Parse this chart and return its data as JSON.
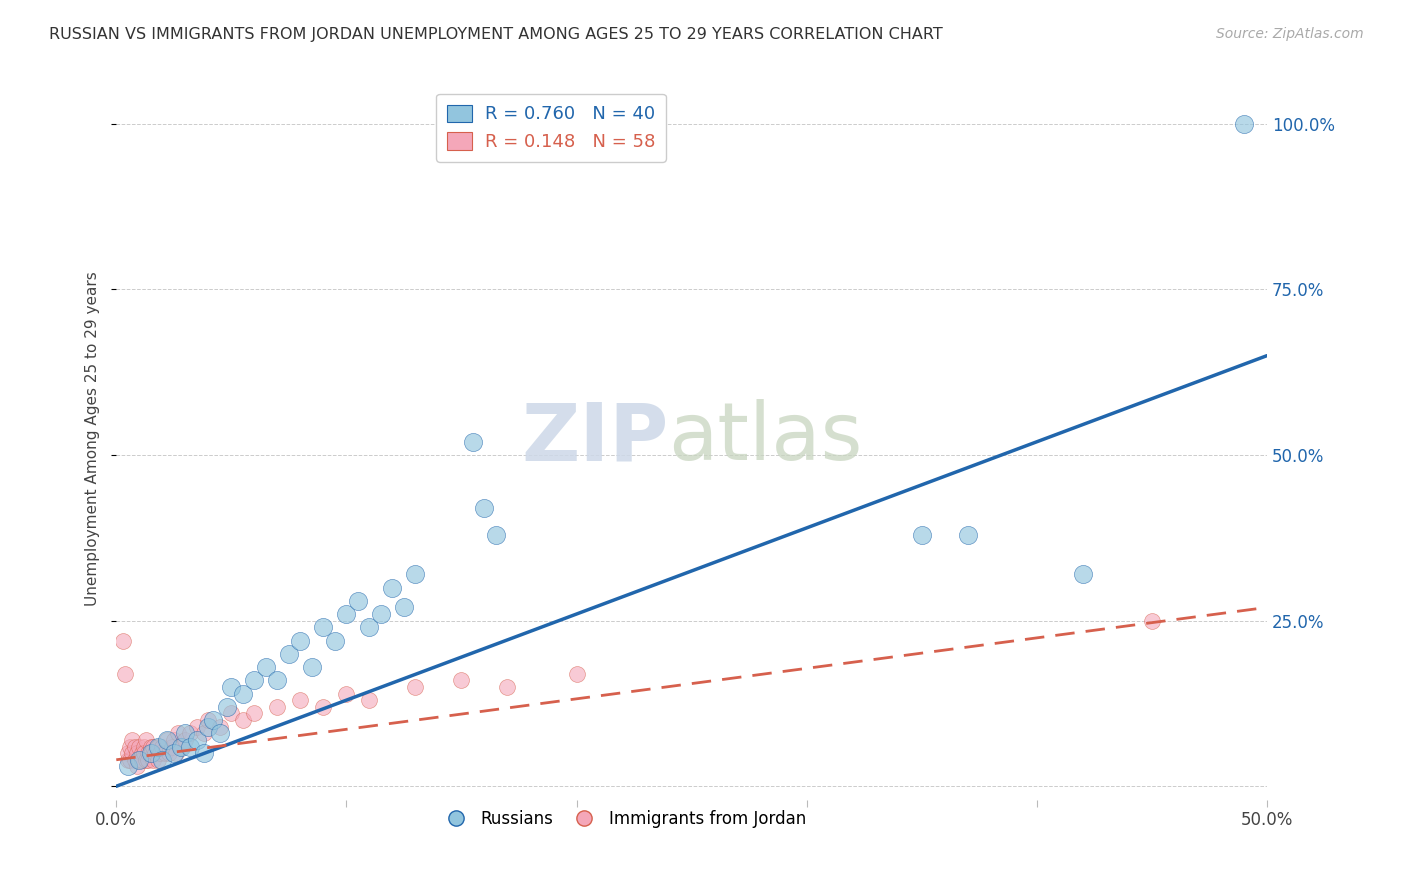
{
  "title": "RUSSIAN VS IMMIGRANTS FROM JORDAN UNEMPLOYMENT AMONG AGES 25 TO 29 YEARS CORRELATION CHART",
  "source": "Source: ZipAtlas.com",
  "ylabel": "Unemployment Among Ages 25 to 29 years",
  "xlim": [
    0.0,
    0.5
  ],
  "ylim": [
    -0.02,
    1.07
  ],
  "xticks": [
    0.0,
    0.1,
    0.2,
    0.3,
    0.4,
    0.5
  ],
  "xticklabels_visible": [
    "0.0%",
    "",
    "",
    "",
    "",
    "50.0%"
  ],
  "yticks": [
    0.0,
    0.25,
    0.5,
    0.75,
    1.0
  ],
  "yticklabels": [
    "",
    "25.0%",
    "50.0%",
    "75.0%",
    "100.0%"
  ],
  "legend_r1": "R = 0.760",
  "legend_n1": "N = 40",
  "legend_r2": "R = 0.148",
  "legend_n2": "N = 58",
  "russians_color": "#92c5de",
  "jordan_color": "#f4a7b9",
  "blue_line_color": "#2166ac",
  "pink_line_color": "#d6604d",
  "watermark_zip_color": "#cdd8e8",
  "watermark_atlas_color": "#c8d5c0",
  "russians_scatter": [
    [
      0.005,
      0.03
    ],
    [
      0.01,
      0.04
    ],
    [
      0.015,
      0.05
    ],
    [
      0.018,
      0.06
    ],
    [
      0.02,
      0.04
    ],
    [
      0.022,
      0.07
    ],
    [
      0.025,
      0.05
    ],
    [
      0.028,
      0.06
    ],
    [
      0.03,
      0.08
    ],
    [
      0.032,
      0.06
    ],
    [
      0.035,
      0.07
    ],
    [
      0.038,
      0.05
    ],
    [
      0.04,
      0.09
    ],
    [
      0.042,
      0.1
    ],
    [
      0.045,
      0.08
    ],
    [
      0.048,
      0.12
    ],
    [
      0.05,
      0.15
    ],
    [
      0.055,
      0.14
    ],
    [
      0.06,
      0.16
    ],
    [
      0.065,
      0.18
    ],
    [
      0.07,
      0.16
    ],
    [
      0.075,
      0.2
    ],
    [
      0.08,
      0.22
    ],
    [
      0.085,
      0.18
    ],
    [
      0.09,
      0.24
    ],
    [
      0.095,
      0.22
    ],
    [
      0.1,
      0.26
    ],
    [
      0.105,
      0.28
    ],
    [
      0.11,
      0.24
    ],
    [
      0.115,
      0.26
    ],
    [
      0.12,
      0.3
    ],
    [
      0.125,
      0.27
    ],
    [
      0.13,
      0.32
    ],
    [
      0.155,
      0.52
    ],
    [
      0.16,
      0.42
    ],
    [
      0.165,
      0.38
    ],
    [
      0.35,
      0.38
    ],
    [
      0.37,
      0.38
    ],
    [
      0.42,
      0.32
    ],
    [
      0.49,
      1.0
    ]
  ],
  "jordan_scatter": [
    [
      0.003,
      0.22
    ],
    [
      0.004,
      0.17
    ],
    [
      0.005,
      0.04
    ],
    [
      0.005,
      0.05
    ],
    [
      0.006,
      0.04
    ],
    [
      0.006,
      0.06
    ],
    [
      0.007,
      0.05
    ],
    [
      0.007,
      0.07
    ],
    [
      0.008,
      0.04
    ],
    [
      0.008,
      0.06
    ],
    [
      0.009,
      0.05
    ],
    [
      0.009,
      0.03
    ],
    [
      0.01,
      0.04
    ],
    [
      0.01,
      0.06
    ],
    [
      0.011,
      0.05
    ],
    [
      0.011,
      0.04
    ],
    [
      0.012,
      0.06
    ],
    [
      0.012,
      0.05
    ],
    [
      0.013,
      0.04
    ],
    [
      0.013,
      0.07
    ],
    [
      0.014,
      0.05
    ],
    [
      0.014,
      0.04
    ],
    [
      0.015,
      0.06
    ],
    [
      0.015,
      0.05
    ],
    [
      0.016,
      0.04
    ],
    [
      0.016,
      0.06
    ],
    [
      0.017,
      0.05
    ],
    [
      0.018,
      0.04
    ],
    [
      0.018,
      0.06
    ],
    [
      0.019,
      0.05
    ],
    [
      0.02,
      0.06
    ],
    [
      0.021,
      0.05
    ],
    [
      0.022,
      0.07
    ],
    [
      0.023,
      0.05
    ],
    [
      0.024,
      0.06
    ],
    [
      0.025,
      0.07
    ],
    [
      0.026,
      0.05
    ],
    [
      0.027,
      0.08
    ],
    [
      0.028,
      0.06
    ],
    [
      0.03,
      0.07
    ],
    [
      0.032,
      0.08
    ],
    [
      0.035,
      0.09
    ],
    [
      0.038,
      0.08
    ],
    [
      0.04,
      0.1
    ],
    [
      0.045,
      0.09
    ],
    [
      0.05,
      0.11
    ],
    [
      0.055,
      0.1
    ],
    [
      0.06,
      0.11
    ],
    [
      0.07,
      0.12
    ],
    [
      0.08,
      0.13
    ],
    [
      0.09,
      0.12
    ],
    [
      0.1,
      0.14
    ],
    [
      0.11,
      0.13
    ],
    [
      0.13,
      0.15
    ],
    [
      0.15,
      0.16
    ],
    [
      0.17,
      0.15
    ],
    [
      0.2,
      0.17
    ],
    [
      0.45,
      0.25
    ]
  ],
  "blue_trendline_x": [
    0.0,
    0.5
  ],
  "blue_trendline_y": [
    0.0,
    0.65
  ],
  "pink_trendline_x": [
    0.0,
    0.5
  ],
  "pink_trendline_y": [
    0.04,
    0.27
  ]
}
